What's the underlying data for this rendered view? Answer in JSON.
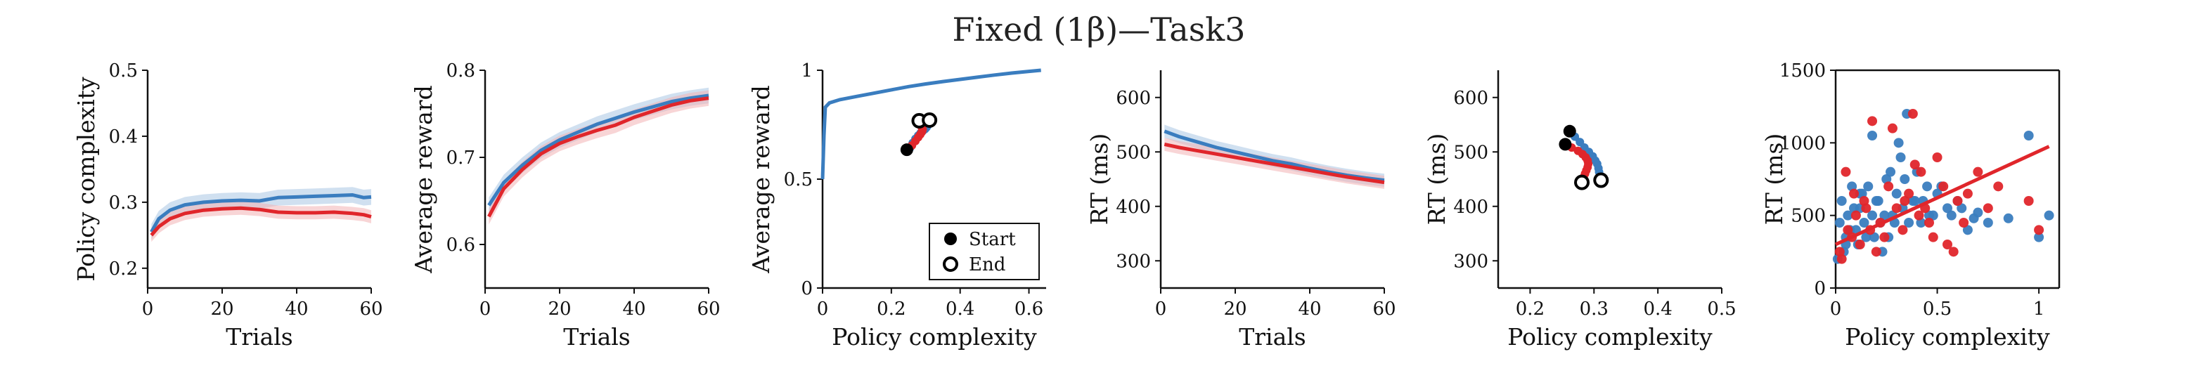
{
  "title": "Fixed (1β)—Task3",
  "colors": {
    "blue": "#3a7dbf",
    "red": "#e0262b",
    "blue_band": "#a9c6e4",
    "red_band": "#f3b3b5"
  },
  "chart_data": [
    {
      "type": "line",
      "xlabel": "Trials",
      "ylabel": "Policy complexity",
      "xlim": [
        0,
        60
      ],
      "ylim": [
        0.17,
        0.5
      ],
      "xticks": [
        0,
        20,
        40,
        60
      ],
      "yticks": [
        0.2,
        0.3,
        0.4,
        0.5
      ],
      "ytick_labels": [
        "0.2",
        "0.3",
        "0.4",
        "0.5"
      ],
      "series": [
        {
          "color": "blue",
          "x": [
            1,
            3,
            6,
            10,
            15,
            20,
            25,
            30,
            35,
            40,
            45,
            50,
            55,
            58,
            60
          ],
          "y": [
            0.255,
            0.275,
            0.288,
            0.296,
            0.3,
            0.302,
            0.303,
            0.302,
            0.307,
            0.308,
            0.309,
            0.31,
            0.311,
            0.307,
            0.308
          ],
          "band": 0.012
        },
        {
          "color": "red",
          "x": [
            1,
            3,
            6,
            10,
            15,
            20,
            25,
            30,
            35,
            40,
            45,
            50,
            55,
            58,
            60
          ],
          "y": [
            0.25,
            0.263,
            0.275,
            0.283,
            0.288,
            0.29,
            0.291,
            0.289,
            0.285,
            0.284,
            0.284,
            0.285,
            0.283,
            0.281,
            0.278
          ],
          "band": 0.01
        }
      ]
    },
    {
      "type": "line",
      "xlabel": "Trials",
      "ylabel": "Average reward",
      "xlim": [
        0,
        60
      ],
      "ylim": [
        0.55,
        0.8
      ],
      "xticks": [
        0,
        20,
        40,
        60
      ],
      "yticks": [
        0.6,
        0.7,
        0.8
      ],
      "ytick_labels": [
        "0.6",
        "0.7",
        "0.8"
      ],
      "series": [
        {
          "color": "blue",
          "x": [
            1,
            5,
            10,
            15,
            20,
            25,
            30,
            35,
            40,
            45,
            50,
            55,
            60
          ],
          "y": [
            0.645,
            0.671,
            0.691,
            0.708,
            0.72,
            0.729,
            0.738,
            0.745,
            0.752,
            0.758,
            0.764,
            0.768,
            0.771
          ],
          "band": 0.009
        },
        {
          "color": "red",
          "x": [
            1,
            5,
            10,
            15,
            20,
            25,
            30,
            35,
            40,
            45,
            50,
            55,
            60
          ],
          "y": [
            0.632,
            0.664,
            0.686,
            0.704,
            0.716,
            0.724,
            0.731,
            0.737,
            0.746,
            0.753,
            0.76,
            0.765,
            0.768
          ],
          "band": 0.009
        }
      ]
    },
    {
      "type": "scatter",
      "xlabel": "Policy complexity",
      "ylabel": "Average reward",
      "xlim": [
        0,
        0.65
      ],
      "ylim": [
        0,
        1
      ],
      "xticks": [
        0,
        0.2,
        0.4,
        0.6
      ],
      "yticks": [
        0,
        0.5,
        1
      ],
      "xtick_labels": [
        "0",
        "0.2",
        "0.4",
        "0.6"
      ],
      "ytick_labels": [
        "0",
        "0.5",
        "1"
      ],
      "frontier": {
        "color": "blue",
        "x": [
          0,
          0.004,
          0.008,
          0.02,
          0.05,
          0.1,
          0.15,
          0.2,
          0.25,
          0.3,
          0.35,
          0.4,
          0.45,
          0.5,
          0.55,
          0.6,
          0.635
        ],
        "y": [
          0.5,
          0.7,
          0.83,
          0.85,
          0.865,
          0.88,
          0.895,
          0.91,
          0.925,
          0.937,
          0.948,
          0.958,
          0.968,
          0.978,
          0.987,
          0.995,
          1.0
        ]
      },
      "series": [
        {
          "color": "blue",
          "x": [
            0.255,
            0.262,
            0.27,
            0.278,
            0.285,
            0.292,
            0.298,
            0.302,
            0.305,
            0.307,
            0.308,
            0.309,
            0.31,
            0.311
          ],
          "y": [
            0.645,
            0.666,
            0.685,
            0.7,
            0.712,
            0.722,
            0.73,
            0.737,
            0.744,
            0.75,
            0.756,
            0.762,
            0.766,
            0.771
          ]
        },
        {
          "color": "red",
          "x": [
            0.25,
            0.26,
            0.27,
            0.278,
            0.284,
            0.288,
            0.29,
            0.291,
            0.289,
            0.287,
            0.285,
            0.284,
            0.283,
            0.281
          ],
          "y": [
            0.632,
            0.655,
            0.675,
            0.692,
            0.705,
            0.715,
            0.722,
            0.729,
            0.736,
            0.744,
            0.751,
            0.758,
            0.763,
            0.768
          ]
        }
      ],
      "start_points": [
        {
          "x": 0.245,
          "y": 0.635
        }
      ],
      "end_points": [
        {
          "x": 0.281,
          "y": 0.768
        },
        {
          "x": 0.311,
          "y": 0.771
        }
      ],
      "legend": {
        "position": "bottom-right",
        "entries": [
          {
            "label": "Start",
            "marker": "filled"
          },
          {
            "label": "End",
            "marker": "open"
          }
        ]
      }
    },
    {
      "type": "line",
      "xlabel": "Trials",
      "ylabel": "RT (ms)",
      "xlim": [
        0,
        60
      ],
      "ylim": [
        250,
        650
      ],
      "xticks": [
        0,
        20,
        40,
        60
      ],
      "yticks": [
        300,
        400,
        500,
        600
      ],
      "ytick_labels": [
        "300",
        "400",
        "500",
        "600"
      ],
      "series": [
        {
          "color": "blue",
          "x": [
            1,
            5,
            10,
            15,
            20,
            25,
            30,
            35,
            40,
            45,
            50,
            55,
            60
          ],
          "y": [
            538,
            528,
            518,
            508,
            500,
            492,
            484,
            478,
            470,
            463,
            457,
            452,
            448
          ],
          "band": 12
        },
        {
          "color": "red",
          "x": [
            1,
            5,
            10,
            15,
            20,
            25,
            30,
            35,
            40,
            45,
            50,
            55,
            60
          ],
          "y": [
            514,
            508,
            502,
            496,
            490,
            484,
            478,
            472,
            466,
            460,
            454,
            449,
            444
          ],
          "band": 12
        }
      ]
    },
    {
      "type": "scatter",
      "xlabel": "Policy complexity",
      "ylabel": "RT (ms)",
      "xlim": [
        0.15,
        0.5
      ],
      "ylim": [
        250,
        650
      ],
      "xticks": [
        0.2,
        0.3,
        0.4,
        0.5
      ],
      "yticks": [
        300,
        400,
        500,
        600
      ],
      "xtick_labels": [
        "0.2",
        "0.3",
        "0.4",
        "0.5"
      ],
      "ytick_labels": [
        "300",
        "400",
        "500",
        "600"
      ],
      "series": [
        {
          "color": "blue",
          "x": [
            0.262,
            0.27,
            0.278,
            0.285,
            0.292,
            0.298,
            0.302,
            0.305,
            0.307,
            0.308,
            0.309,
            0.31,
            0.311
          ],
          "y": [
            538,
            528,
            518,
            508,
            500,
            492,
            484,
            478,
            470,
            463,
            457,
            452,
            448
          ]
        },
        {
          "color": "red",
          "x": [
            0.255,
            0.265,
            0.275,
            0.282,
            0.287,
            0.29,
            0.291,
            0.29,
            0.288,
            0.286,
            0.284,
            0.283,
            0.281
          ],
          "y": [
            514,
            508,
            502,
            496,
            490,
            484,
            478,
            472,
            466,
            460,
            454,
            449,
            444
          ]
        }
      ],
      "start_points": [
        {
          "x": 0.262,
          "y": 538
        },
        {
          "x": 0.255,
          "y": 514
        }
      ],
      "end_points": [
        {
          "x": 0.281,
          "y": 444
        },
        {
          "x": 0.311,
          "y": 448
        }
      ]
    },
    {
      "type": "scatter",
      "xlabel": "Policy complexity",
      "ylabel": "RT (ms)",
      "xlim": [
        0,
        1.1
      ],
      "ylim": [
        0,
        1500
      ],
      "xticks": [
        0,
        0.5,
        1
      ],
      "yticks": [
        0,
        500,
        1000,
        1500
      ],
      "xtick_labels": [
        "0",
        "0.5",
        "1"
      ],
      "ytick_labels": [
        "0",
        "500",
        "1000",
        "1500"
      ],
      "fit_line": {
        "color": "red",
        "x": [
          0,
          1.05
        ],
        "y": [
          300,
          975
        ]
      },
      "series": [
        {
          "color": "blue",
          "x": [
            0.02,
            0.03,
            0.05,
            0.06,
            0.08,
            0.1,
            0.12,
            0.13,
            0.15,
            0.18,
            0.2,
            0.22,
            0.25,
            0.28,
            0.3,
            0.33,
            0.35,
            0.38,
            0.4,
            0.42,
            0.45,
            0.48,
            0.5,
            0.55,
            0.6,
            0.65,
            0.7,
            0.75,
            0.85,
            0.95,
            1.0,
            1.05,
            0.04,
            0.07,
            0.09,
            0.11,
            0.14,
            0.16,
            0.19,
            0.21,
            0.24,
            0.27,
            0.31,
            0.36,
            0.43,
            0.52,
            0.57,
            0.62,
            0.01,
            0.26,
            0.34,
            0.18,
            0.23,
            0.39,
            0.46,
            0.68,
            0.05,
            0.12,
            0.29,
            0.32
          ],
          "y": [
            450,
            600,
            300,
            500,
            700,
            400,
            550,
            650,
            350,
            500,
            600,
            450,
            750,
            500,
            650,
            550,
            1200,
            600,
            800,
            450,
            700,
            500,
            650,
            550,
            600,
            400,
            520,
            450,
            480,
            1050,
            350,
            500,
            250,
            400,
            550,
            300,
            450,
            700,
            350,
            600,
            500,
            800,
            1000,
            450,
            600,
            700,
            500,
            550,
            200,
            350,
            750,
            1050,
            250,
            600,
            500,
            480,
            350,
            650,
            450,
            900
          ]
        },
        {
          "color": "red",
          "x": [
            0.03,
            0.06,
            0.09,
            0.12,
            0.15,
            0.18,
            0.22,
            0.26,
            0.3,
            0.34,
            0.38,
            0.42,
            0.46,
            0.5,
            0.55,
            0.6,
            0.65,
            0.7,
            0.75,
            0.8,
            0.95,
            1.0,
            0.05,
            0.1,
            0.2,
            0.24,
            0.28,
            0.33,
            0.36,
            0.41,
            0.48,
            0.53,
            0.58,
            0.63,
            0.08,
            0.14,
            0.17,
            0.39,
            0.44,
            0.02
          ],
          "y": [
            200,
            400,
            650,
            300,
            550,
            1150,
            450,
            700,
            550,
            600,
            1200,
            800,
            450,
            900,
            300,
            600,
            650,
            800,
            550,
            700,
            600,
            400,
            800,
            500,
            250,
            350,
            1100,
            400,
            650,
            500,
            350,
            700,
            250,
            450,
            350,
            600,
            400,
            850,
            550,
            250
          ]
        }
      ]
    }
  ]
}
